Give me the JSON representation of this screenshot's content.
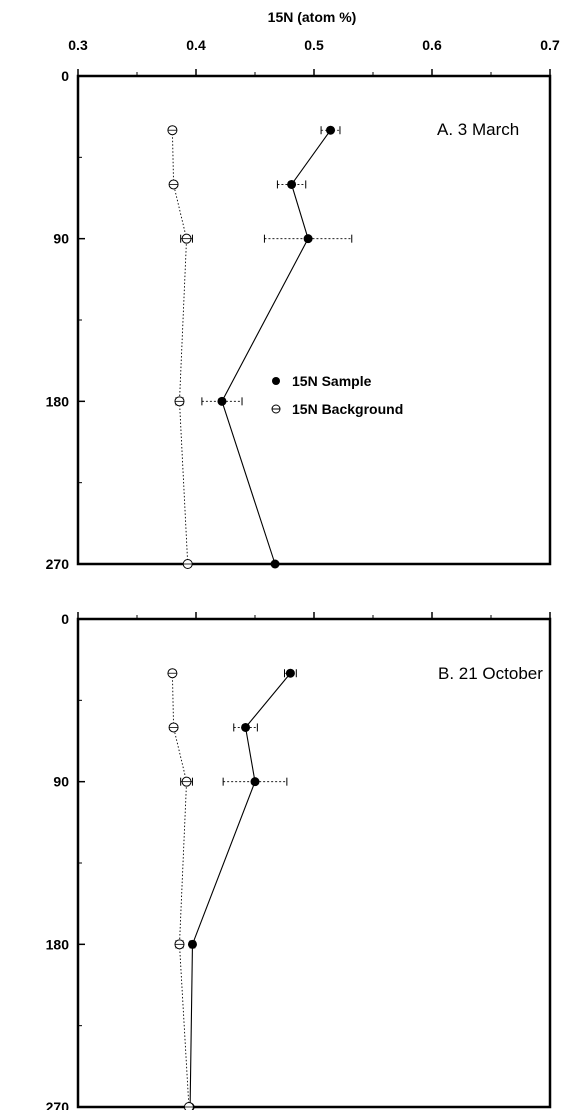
{
  "chart_data": [
    {
      "type": "line",
      "panel": "A",
      "title": "A.  3 March",
      "xlabel": "15N (atom %)",
      "ylabel": "",
      "xlim": [
        0.3,
        0.7
      ],
      "ylim": [
        0,
        270
      ],
      "y_inverted": true,
      "xticks": [
        "0.3",
        "0.4",
        "0.5",
        "0.6",
        "0.7"
      ],
      "yticks": [
        "0",
        "90",
        "180",
        "270"
      ],
      "legend": {
        "position": "center",
        "entries": [
          "15N Sample",
          "15N Background"
        ]
      },
      "series": [
        {
          "name": "15N Sample",
          "marker": "filled-circle",
          "line": "solid",
          "points": [
            {
              "x": 0.514,
              "y": 30,
              "err": 0.008
            },
            {
              "x": 0.481,
              "y": 60,
              "err": 0.012
            },
            {
              "x": 0.495,
              "y": 90,
              "err": 0.037
            },
            {
              "x": 0.422,
              "y": 180,
              "err": 0.017
            },
            {
              "x": 0.467,
              "y": 270,
              "err": 0
            }
          ]
        },
        {
          "name": "15N Background",
          "marker": "open-circle",
          "line": "dotted",
          "points": [
            {
              "x": 0.38,
              "y": 30,
              "err": 0.002
            },
            {
              "x": 0.381,
              "y": 60,
              "err": 0.002
            },
            {
              "x": 0.392,
              "y": 90,
              "err": 0.005
            },
            {
              "x": 0.386,
              "y": 180,
              "err": 0.003
            },
            {
              "x": 0.393,
              "y": 270,
              "err": 0
            }
          ]
        }
      ]
    },
    {
      "type": "line",
      "panel": "B",
      "title": "B.  21 October",
      "xlabel": "",
      "ylabel": "",
      "xlim": [
        0.3,
        0.7
      ],
      "ylim": [
        0,
        270
      ],
      "y_inverted": true,
      "xticks": [],
      "yticks": [
        "0",
        "90",
        "180",
        "270"
      ],
      "legend": null,
      "series": [
        {
          "marker": "filled-circle",
          "line": "solid",
          "points": [
            {
              "x": 0.48,
              "y": 30,
              "err": 0.005
            },
            {
              "x": 0.442,
              "y": 60,
              "err": 0.01
            },
            {
              "x": 0.45,
              "y": 90,
              "err": 0.027
            },
            {
              "x": 0.397,
              "y": 180,
              "err": 0.002
            },
            {
              "x": 0.395,
              "y": 270,
              "err": 0
            }
          ]
        },
        {
          "marker": "open-circle",
          "line": "dotted",
          "points": [
            {
              "x": 0.38,
              "y": 30,
              "err": 0.002
            },
            {
              "x": 0.381,
              "y": 60,
              "err": 0.002
            },
            {
              "x": 0.392,
              "y": 90,
              "err": 0.005
            },
            {
              "x": 0.386,
              "y": 180,
              "err": 0.003
            },
            {
              "x": 0.394,
              "y": 270,
              "err": 0
            }
          ]
        }
      ]
    }
  ]
}
